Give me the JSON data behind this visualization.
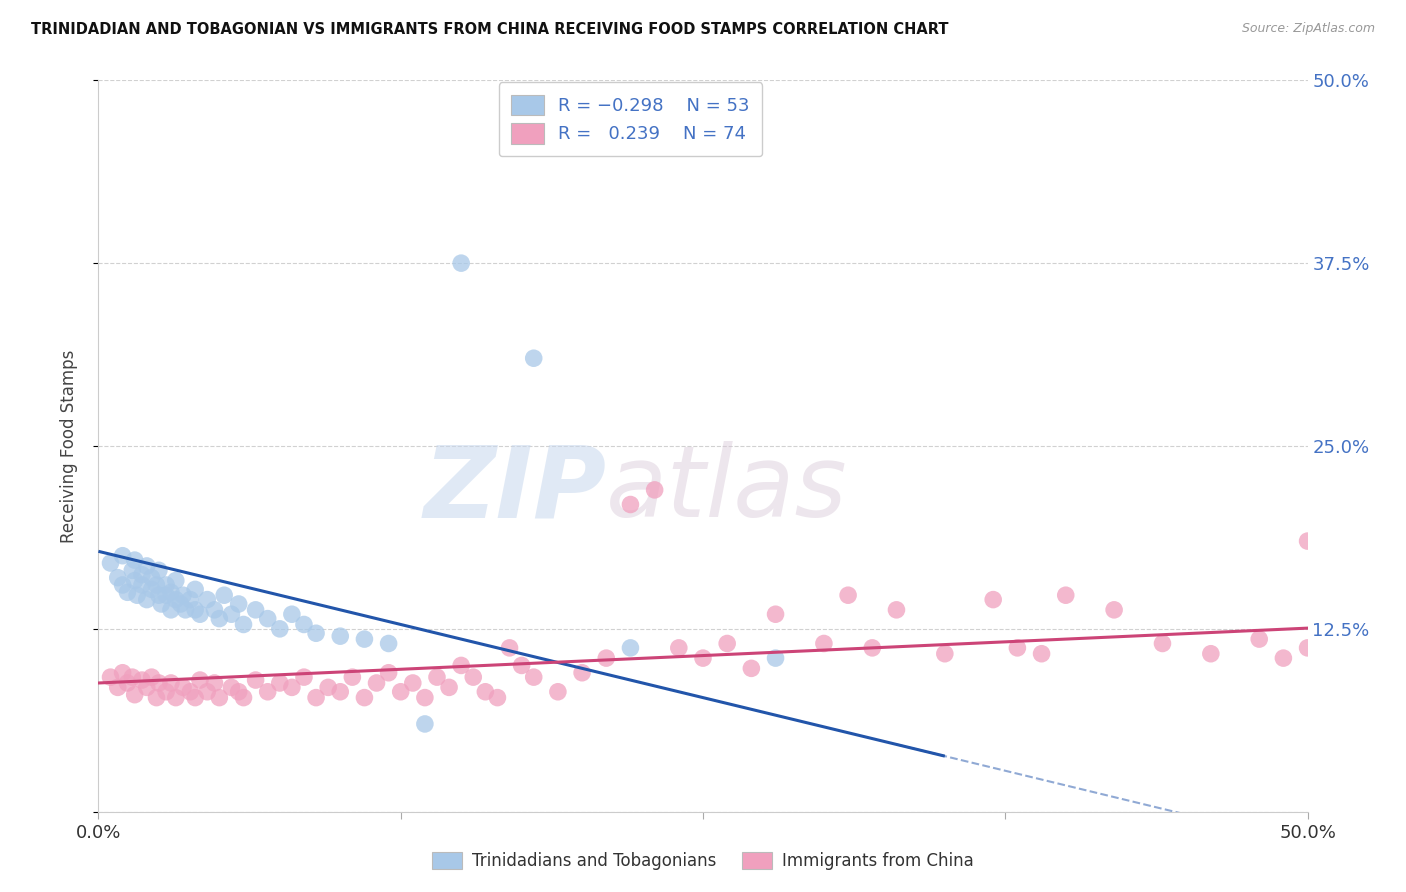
{
  "title": "TRINIDADIAN AND TOBAGONIAN VS IMMIGRANTS FROM CHINA RECEIVING FOOD STAMPS CORRELATION CHART",
  "source": "Source: ZipAtlas.com",
  "ylabel": "Receiving Food Stamps",
  "xlim": [
    0.0,
    0.5
  ],
  "ylim": [
    0.0,
    0.5
  ],
  "yticks": [
    0.0,
    0.125,
    0.25,
    0.375,
    0.5
  ],
  "ytick_labels": [
    "",
    "12.5%",
    "25.0%",
    "37.5%",
    "50.0%"
  ],
  "xticks": [
    0.0,
    0.125,
    0.25,
    0.375,
    0.5
  ],
  "xtick_labels": [
    "0.0%",
    "",
    "",
    "",
    "50.0%"
  ],
  "blue_color": "#a8c8e8",
  "pink_color": "#f0a0be",
  "blue_line_color": "#2255aa",
  "pink_line_color": "#cc4477",
  "watermark_zip": "ZIP",
  "watermark_atlas": "atlas",
  "blue_scatter_x": [
    0.005,
    0.008,
    0.01,
    0.01,
    0.012,
    0.014,
    0.015,
    0.015,
    0.016,
    0.018,
    0.018,
    0.02,
    0.02,
    0.022,
    0.022,
    0.024,
    0.025,
    0.025,
    0.026,
    0.028,
    0.028,
    0.03,
    0.03,
    0.032,
    0.032,
    0.034,
    0.035,
    0.036,
    0.038,
    0.04,
    0.04,
    0.042,
    0.045,
    0.048,
    0.05,
    0.052,
    0.055,
    0.058,
    0.06,
    0.065,
    0.07,
    0.075,
    0.08,
    0.085,
    0.09,
    0.1,
    0.11,
    0.12,
    0.135,
    0.15,
    0.18,
    0.22,
    0.28
  ],
  "blue_scatter_y": [
    0.17,
    0.16,
    0.155,
    0.175,
    0.15,
    0.165,
    0.158,
    0.172,
    0.148,
    0.162,
    0.155,
    0.145,
    0.168,
    0.152,
    0.16,
    0.155,
    0.148,
    0.165,
    0.142,
    0.155,
    0.148,
    0.15,
    0.138,
    0.145,
    0.158,
    0.142,
    0.148,
    0.138,
    0.145,
    0.138,
    0.152,
    0.135,
    0.145,
    0.138,
    0.132,
    0.148,
    0.135,
    0.142,
    0.128,
    0.138,
    0.132,
    0.125,
    0.135,
    0.128,
    0.122,
    0.12,
    0.118,
    0.115,
    0.06,
    0.375,
    0.31,
    0.112,
    0.105
  ],
  "pink_scatter_x": [
    0.005,
    0.008,
    0.01,
    0.012,
    0.014,
    0.015,
    0.018,
    0.02,
    0.022,
    0.024,
    0.025,
    0.028,
    0.03,
    0.032,
    0.035,
    0.038,
    0.04,
    0.042,
    0.045,
    0.048,
    0.05,
    0.055,
    0.058,
    0.06,
    0.065,
    0.07,
    0.075,
    0.08,
    0.085,
    0.09,
    0.095,
    0.1,
    0.105,
    0.11,
    0.115,
    0.12,
    0.125,
    0.13,
    0.135,
    0.14,
    0.145,
    0.15,
    0.155,
    0.16,
    0.165,
    0.17,
    0.175,
    0.18,
    0.19,
    0.2,
    0.21,
    0.22,
    0.23,
    0.24,
    0.25,
    0.26,
    0.27,
    0.28,
    0.3,
    0.31,
    0.32,
    0.33,
    0.35,
    0.37,
    0.38,
    0.39,
    0.4,
    0.42,
    0.44,
    0.46,
    0.48,
    0.49,
    0.5,
    0.5
  ],
  "pink_scatter_y": [
    0.092,
    0.085,
    0.095,
    0.088,
    0.092,
    0.08,
    0.09,
    0.085,
    0.092,
    0.078,
    0.088,
    0.082,
    0.088,
    0.078,
    0.085,
    0.082,
    0.078,
    0.09,
    0.082,
    0.088,
    0.078,
    0.085,
    0.082,
    0.078,
    0.09,
    0.082,
    0.088,
    0.085,
    0.092,
    0.078,
    0.085,
    0.082,
    0.092,
    0.078,
    0.088,
    0.095,
    0.082,
    0.088,
    0.078,
    0.092,
    0.085,
    0.1,
    0.092,
    0.082,
    0.078,
    0.112,
    0.1,
    0.092,
    0.082,
    0.095,
    0.105,
    0.21,
    0.22,
    0.112,
    0.105,
    0.115,
    0.098,
    0.135,
    0.115,
    0.148,
    0.112,
    0.138,
    0.108,
    0.145,
    0.112,
    0.108,
    0.148,
    0.138,
    0.115,
    0.108,
    0.118,
    0.105,
    0.185,
    0.112
  ]
}
